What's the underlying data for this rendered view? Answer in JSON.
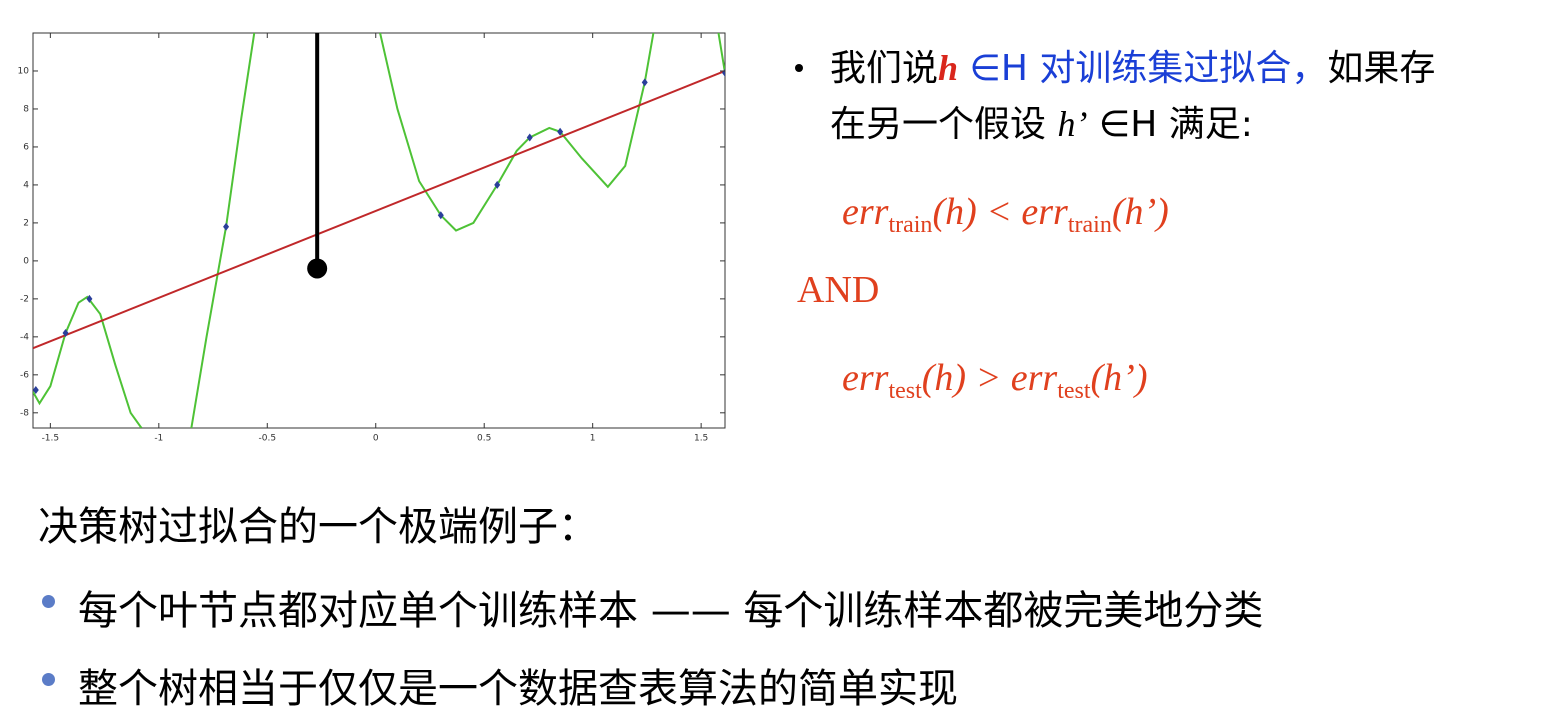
{
  "chart_data": {
    "type": "line",
    "xlim": [
      -1.58,
      1.61
    ],
    "ylim": [
      -8.8,
      12
    ],
    "xticks": [
      -1.5,
      -1,
      -0.5,
      0,
      0.5,
      1,
      1.5
    ],
    "yticks": [
      -8,
      -6,
      -4,
      -2,
      0,
      2,
      4,
      6,
      8,
      10
    ],
    "series": [
      {
        "kind": "line",
        "color": "#4ec236",
        "x": [
          -1.58,
          -1.55,
          -1.5,
          -1.43,
          -1.37,
          -1.33,
          -1.27,
          -1.2,
          -1.13,
          -1.08,
          -0.96,
          -0.85,
          -0.78,
          -0.69,
          -0.62,
          -0.56,
          -0.27,
          0.02,
          0.1,
          0.2,
          0.3,
          0.37,
          0.45,
          0.56,
          0.65,
          0.71,
          0.8,
          0.85,
          0.95,
          1.07,
          1.15,
          1.24,
          1.28,
          1.45,
          1.58,
          1.61
        ],
        "values": [
          -6.9,
          -7.5,
          -6.6,
          -3.8,
          -2.2,
          -1.9,
          -2.8,
          -5.5,
          -8,
          -8.8,
          null,
          -8.8,
          -4,
          1.8,
          7.5,
          12,
          null,
          12,
          8,
          4.2,
          2.4,
          1.6,
          2,
          4,
          5.8,
          6.5,
          7,
          6.8,
          5.4,
          3.9,
          5,
          9.4,
          12,
          null,
          12,
          9.9
        ]
      },
      {
        "kind": "line",
        "color": "#c0282a",
        "x": [
          -1.58,
          1.61
        ],
        "values": [
          -4.6,
          10
        ]
      },
      {
        "kind": "scatter",
        "color": "#2a3f9a",
        "x": [
          -1.567,
          -1.43,
          -1.32,
          -0.69,
          0.3,
          0.56,
          0.71,
          0.85,
          1.24,
          1.61
        ],
        "values": [
          -6.8,
          -3.8,
          -2,
          1.8,
          2.4,
          4,
          6.5,
          6.8,
          9.4,
          9.9
        ]
      },
      {
        "kind": "stem",
        "color": "#000000",
        "x": [
          -0.27
        ],
        "values": [
          -0.4
        ]
      }
    ]
  },
  "text": {
    "l1": [
      "我们说",
      "h",
      " ∈H 对训练集过拟合，",
      "如果存"
    ],
    "l2": [
      "在另一个假设 ",
      "h’",
      " ∈H  满足:"
    ],
    "f1": [
      "err",
      "train",
      "(h) < ",
      "err",
      "train",
      "(h’)"
    ],
    "and": "AND",
    "f2": [
      "err",
      "test",
      "(h) > ",
      "err",
      "test",
      "(h’)"
    ],
    "heading": "决策树过拟合的一个极端例子：",
    "bullets": [
      "每个叶节点都对应单个训练样本 —— 每个训练样本都被完美地分类",
      "整个树相当于仅仅是一个数据查表算法的简单实现"
    ]
  }
}
